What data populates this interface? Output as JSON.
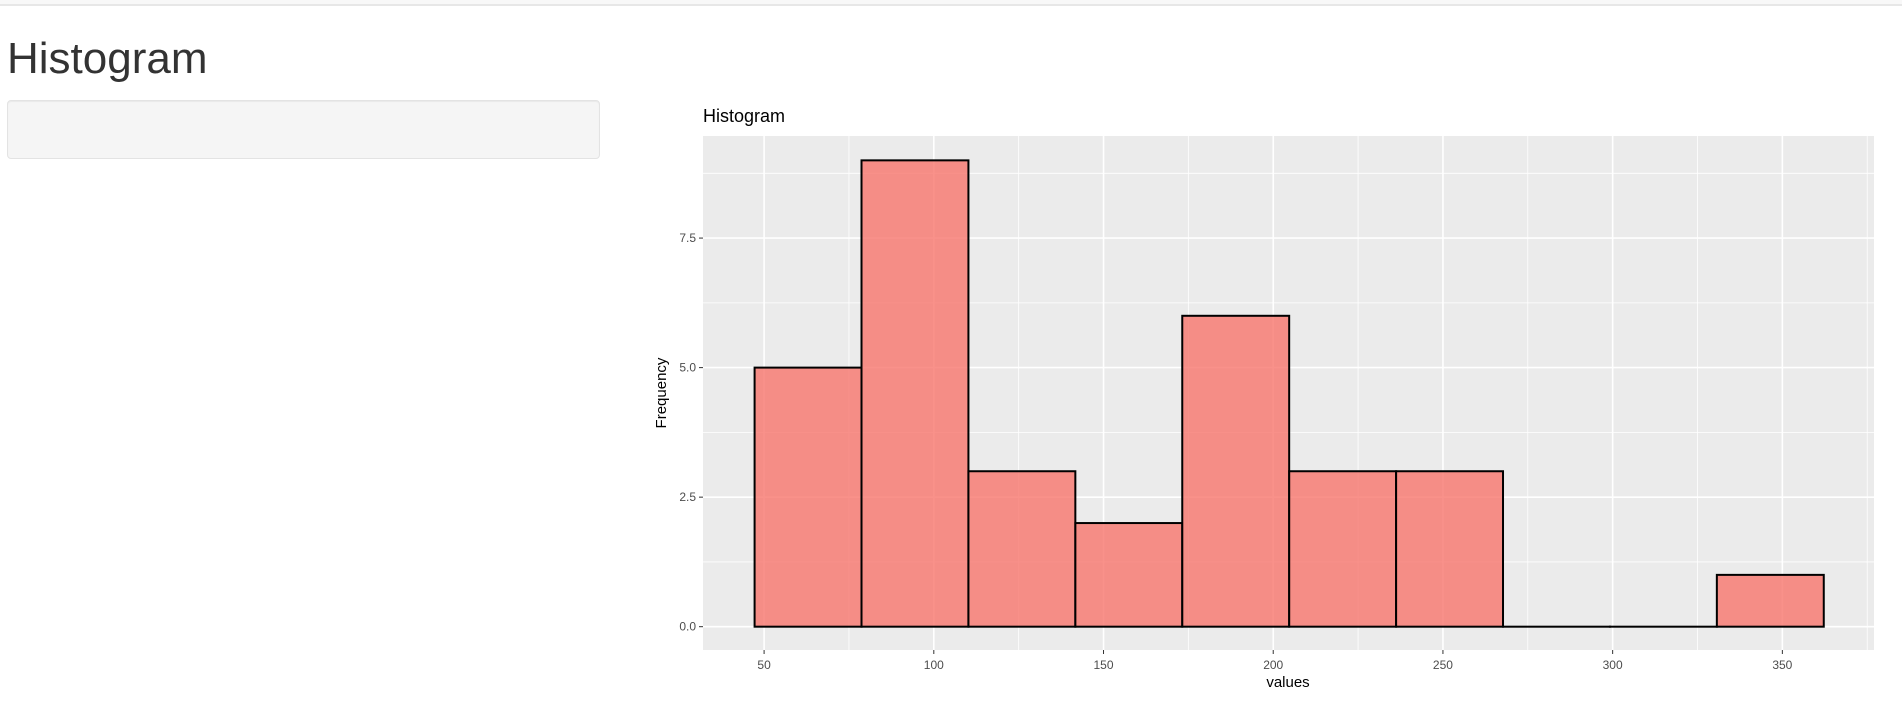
{
  "page": {
    "title": "Histogram"
  },
  "chart_data": {
    "type": "bar",
    "title": "Histogram",
    "xlabel": "values",
    "ylabel": "Frequency",
    "bin_edges": [
      47.2,
      78.7,
      110.2,
      141.7,
      173.2,
      204.7,
      236.2,
      267.7,
      299.2,
      330.7,
      362.2
    ],
    "values": [
      5,
      9,
      3,
      2,
      6,
      3,
      3,
      0,
      0,
      1
    ],
    "xlim": [
      32,
      377
    ],
    "ylim": [
      -0.45,
      9.47
    ],
    "xticks": [
      50,
      100,
      150,
      200,
      250,
      300,
      350
    ],
    "xtick_labels": [
      "50",
      "100",
      "150",
      "200",
      "250",
      "300",
      "350"
    ],
    "yticks": [
      0,
      2.5,
      5,
      7.5
    ],
    "ytick_labels": [
      "0.0",
      "2.5",
      "5.0",
      "7.5"
    ],
    "grid": true,
    "fill_color": "#F8766D",
    "fill_opacity": 0.8,
    "outline_color": "#000000",
    "panel_color": "#EBEBEB"
  }
}
